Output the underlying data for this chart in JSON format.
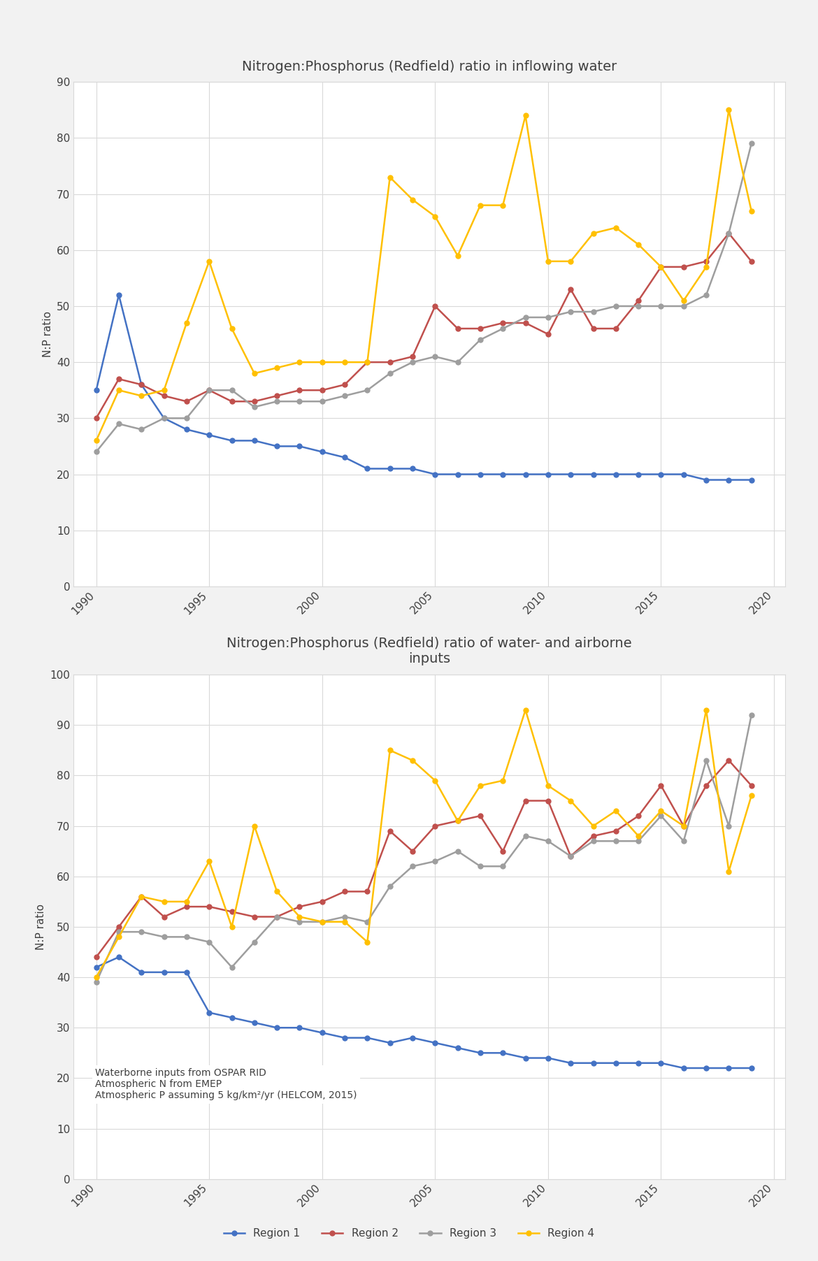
{
  "title1": "Nitrogen:Phosphorus (Redfield) ratio in inflowing water",
  "title2": "Nitrogen:Phosphorus (Redfield) ratio of water- and airborne\ninputs",
  "ylabel": "N:P ratio",
  "annotation": "Waterborne inputs from OSPAR RID\nAtmospheric N from EMEP\nAtmospheric P assuming 5 kg/km²/yr (HELCOM, 2015)",
  "years": [
    1990,
    1991,
    1992,
    1993,
    1994,
    1995,
    1996,
    1997,
    1998,
    1999,
    2000,
    2001,
    2002,
    2003,
    2004,
    2005,
    2006,
    2007,
    2008,
    2009,
    2010,
    2011,
    2012,
    2013,
    2014,
    2015,
    2016,
    2017,
    2018,
    2019
  ],
  "plot1": {
    "region1": [
      35,
      52,
      36,
      30,
      28,
      27,
      26,
      26,
      25,
      25,
      24,
      23,
      21,
      21,
      21,
      20,
      20,
      20,
      20,
      20,
      20,
      20,
      20,
      20,
      20,
      20,
      20,
      19,
      19,
      19
    ],
    "region2": [
      30,
      37,
      36,
      34,
      33,
      35,
      33,
      33,
      34,
      35,
      35,
      36,
      40,
      40,
      41,
      50,
      46,
      46,
      47,
      47,
      45,
      53,
      46,
      46,
      51,
      57,
      57,
      58,
      63,
      58
    ],
    "region3": [
      24,
      29,
      28,
      30,
      30,
      35,
      35,
      32,
      33,
      33,
      33,
      34,
      35,
      38,
      40,
      41,
      40,
      44,
      46,
      48,
      48,
      49,
      49,
      50,
      50,
      50,
      50,
      52,
      63,
      79
    ],
    "region4": [
      26,
      35,
      34,
      35,
      47,
      58,
      46,
      38,
      39,
      40,
      40,
      40,
      40,
      73,
      69,
      66,
      59,
      68,
      68,
      84,
      58,
      58,
      63,
      64,
      61,
      57,
      51,
      57,
      85,
      67
    ]
  },
  "plot2": {
    "region1": [
      42,
      44,
      41,
      41,
      41,
      33,
      32,
      31,
      30,
      30,
      29,
      28,
      28,
      27,
      28,
      27,
      26,
      25,
      25,
      24,
      24,
      23,
      23,
      23,
      23,
      23,
      22,
      22,
      22,
      22
    ],
    "region2": [
      44,
      50,
      56,
      52,
      54,
      54,
      53,
      52,
      52,
      54,
      55,
      57,
      57,
      69,
      65,
      70,
      71,
      72,
      65,
      75,
      75,
      64,
      68,
      69,
      72,
      78,
      70,
      78,
      83,
      78
    ],
    "region3": [
      39,
      49,
      49,
      48,
      48,
      47,
      42,
      47,
      52,
      51,
      51,
      52,
      51,
      58,
      62,
      63,
      65,
      62,
      62,
      68,
      67,
      64,
      67,
      67,
      67,
      72,
      67,
      83,
      70,
      92
    ],
    "region4": [
      40,
      48,
      56,
      55,
      55,
      63,
      50,
      70,
      57,
      52,
      51,
      51,
      47,
      85,
      83,
      79,
      71,
      78,
      79,
      93,
      78,
      75,
      70,
      73,
      68,
      73,
      70,
      93,
      61,
      76
    ]
  },
  "colors": {
    "region1": "#4472C4",
    "region2": "#C0504D",
    "region3": "#9E9E9E",
    "region4": "#FFC000"
  },
  "legend_labels": [
    "Region 1",
    "Region 2",
    "Region 3",
    "Region 4"
  ],
  "ylim1": [
    0,
    90
  ],
  "ylim2": [
    0,
    100
  ],
  "yticks1": [
    0,
    10,
    20,
    30,
    40,
    50,
    60,
    70,
    80,
    90
  ],
  "yticks2": [
    0,
    10,
    20,
    30,
    40,
    50,
    60,
    70,
    80,
    90,
    100
  ],
  "xticks": [
    1990,
    1995,
    2000,
    2005,
    2010,
    2015,
    2020
  ],
  "bg_color": "#F2F2F2",
  "plot_bg": "#FFFFFF",
  "grid_color": "#D9D9D9",
  "text_color": "#404040",
  "title_fontsize": 14,
  "tick_fontsize": 11,
  "label_fontsize": 11,
  "annotation_fontsize": 10,
  "legend_fontsize": 11,
  "line_width": 1.8,
  "marker_size": 5
}
